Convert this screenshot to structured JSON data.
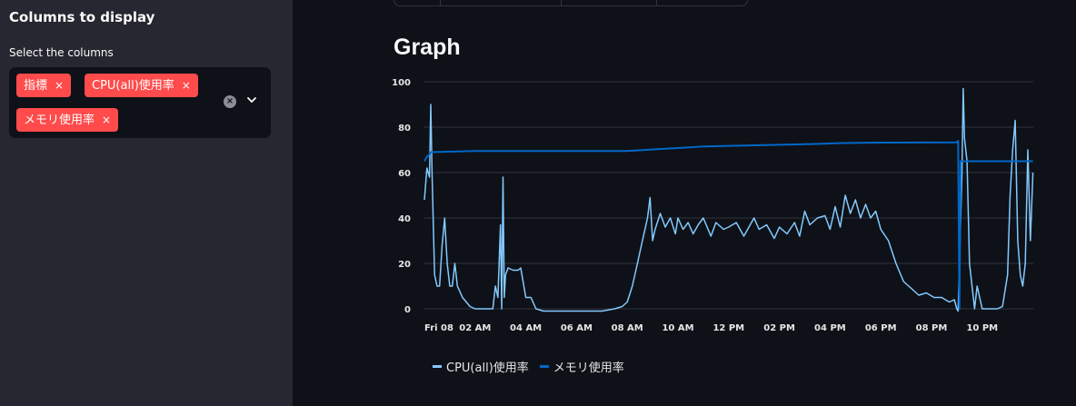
{
  "sidebar": {
    "title": "Columns to display",
    "select_label": "Select the columns",
    "tags": [
      "指標",
      "CPU(all)使用率",
      "メモリ使用率"
    ],
    "tag_remove": "×",
    "clear_icon": "×"
  },
  "main": {
    "heading": "Graph"
  },
  "colors": {
    "cpu": "#83c9ff",
    "mem": "#0068c9",
    "tag": "#ff4b4b",
    "sidebar_bg": "#262730",
    "page_bg": "#0e1117"
  },
  "chart_data": {
    "type": "line",
    "x_tick_labels": [
      "Fri 08",
      "02 AM",
      "04 AM",
      "06 AM",
      "08 AM",
      "10 AM",
      "12 PM",
      "02 PM",
      "04 PM",
      "06 PM",
      "08 PM",
      "10 PM"
    ],
    "x_ticks_hours": [
      0,
      2,
      4,
      6,
      8,
      10,
      12,
      14,
      16,
      18,
      20,
      22
    ],
    "xlim_hours": [
      0,
      24
    ],
    "ylim": [
      0,
      100
    ],
    "y_ticks": [
      0,
      20,
      40,
      60,
      80,
      100
    ],
    "grid": true,
    "legend_position": "bottom",
    "series": [
      {
        "name": "CPU(all)使用率",
        "points": [
          [
            0.0,
            48
          ],
          [
            0.1,
            62
          ],
          [
            0.2,
            58
          ],
          [
            0.25,
            90
          ],
          [
            0.3,
            60
          ],
          [
            0.4,
            15
          ],
          [
            0.5,
            10
          ],
          [
            0.6,
            10
          ],
          [
            0.7,
            28
          ],
          [
            0.8,
            40
          ],
          [
            0.9,
            20
          ],
          [
            1.0,
            10
          ],
          [
            1.1,
            10
          ],
          [
            1.2,
            20
          ],
          [
            1.3,
            10
          ],
          [
            1.5,
            5
          ],
          [
            1.8,
            1
          ],
          [
            2.0,
            0
          ],
          [
            2.2,
            0
          ],
          [
            2.5,
            0
          ],
          [
            2.7,
            0
          ],
          [
            2.8,
            10
          ],
          [
            2.9,
            5
          ],
          [
            3.0,
            37
          ],
          [
            3.05,
            0
          ],
          [
            3.1,
            58
          ],
          [
            3.15,
            5
          ],
          [
            3.2,
            15
          ],
          [
            3.3,
            18
          ],
          [
            3.5,
            17
          ],
          [
            3.7,
            17
          ],
          [
            3.8,
            18
          ],
          [
            4.0,
            5
          ],
          [
            4.2,
            5
          ],
          [
            4.4,
            0
          ],
          [
            4.7,
            -1
          ],
          [
            5.0,
            -1
          ],
          [
            6.0,
            -1
          ],
          [
            7.0,
            -1
          ],
          [
            7.5,
            0
          ],
          [
            7.8,
            1
          ],
          [
            8.0,
            3
          ],
          [
            8.2,
            10
          ],
          [
            8.4,
            20
          ],
          [
            8.6,
            30
          ],
          [
            8.8,
            40
          ],
          [
            8.9,
            49
          ],
          [
            9.0,
            30
          ],
          [
            9.1,
            35
          ],
          [
            9.3,
            42
          ],
          [
            9.5,
            36
          ],
          [
            9.7,
            40
          ],
          [
            9.9,
            33
          ],
          [
            10.0,
            40
          ],
          [
            10.2,
            35
          ],
          [
            10.4,
            38
          ],
          [
            10.6,
            33
          ],
          [
            10.8,
            37
          ],
          [
            11.0,
            40
          ],
          [
            11.3,
            32
          ],
          [
            11.5,
            38
          ],
          [
            11.8,
            35
          ],
          [
            12.0,
            36
          ],
          [
            12.3,
            38
          ],
          [
            12.6,
            32
          ],
          [
            12.8,
            36
          ],
          [
            13.0,
            40
          ],
          [
            13.2,
            35
          ],
          [
            13.5,
            37
          ],
          [
            13.8,
            31
          ],
          [
            14.0,
            36
          ],
          [
            14.3,
            33
          ],
          [
            14.6,
            38
          ],
          [
            14.8,
            32
          ],
          [
            15.0,
            43
          ],
          [
            15.2,
            37
          ],
          [
            15.5,
            40
          ],
          [
            15.8,
            41
          ],
          [
            16.0,
            35
          ],
          [
            16.2,
            45
          ],
          [
            16.4,
            36
          ],
          [
            16.6,
            50
          ],
          [
            16.8,
            42
          ],
          [
            17.0,
            48
          ],
          [
            17.2,
            40
          ],
          [
            17.4,
            46
          ],
          [
            17.6,
            40
          ],
          [
            17.8,
            43
          ],
          [
            18.0,
            35
          ],
          [
            18.3,
            30
          ],
          [
            18.6,
            20
          ],
          [
            18.9,
            12
          ],
          [
            19.2,
            9
          ],
          [
            19.5,
            6
          ],
          [
            19.8,
            7
          ],
          [
            20.1,
            5
          ],
          [
            20.4,
            5
          ],
          [
            20.7,
            3
          ],
          [
            20.9,
            4
          ],
          [
            21.0,
            0
          ],
          [
            21.05,
            -1
          ],
          [
            21.2,
            60
          ],
          [
            21.25,
            97
          ],
          [
            21.3,
            75
          ],
          [
            21.4,
            65
          ],
          [
            21.5,
            20
          ],
          [
            21.6,
            10
          ],
          [
            21.7,
            0
          ],
          [
            21.8,
            10
          ],
          [
            21.9,
            5
          ],
          [
            22.0,
            0
          ],
          [
            22.2,
            0
          ],
          [
            22.4,
            0
          ],
          [
            22.6,
            0
          ],
          [
            22.8,
            1
          ],
          [
            23.0,
            15
          ],
          [
            23.1,
            50
          ],
          [
            23.2,
            70
          ],
          [
            23.3,
            83
          ],
          [
            23.4,
            30
          ],
          [
            23.5,
            15
          ],
          [
            23.6,
            10
          ],
          [
            23.7,
            20
          ],
          [
            23.8,
            70
          ],
          [
            23.9,
            30
          ],
          [
            24.0,
            60
          ]
        ]
      },
      {
        "name": "メモリ使用率",
        "points": [
          [
            0.0,
            65
          ],
          [
            0.1,
            67
          ],
          [
            0.2,
            68
          ],
          [
            0.25,
            69
          ],
          [
            2.0,
            69.5
          ],
          [
            6.0,
            69.5
          ],
          [
            8.0,
            69.5
          ],
          [
            9.5,
            70.5
          ],
          [
            11.0,
            71.5
          ],
          [
            13.0,
            72
          ],
          [
            15.0,
            72.5
          ],
          [
            16.5,
            73
          ],
          [
            18.0,
            73.2
          ],
          [
            21.0,
            73.3
          ],
          [
            21.05,
            74
          ],
          [
            21.1,
            0
          ],
          [
            21.15,
            65
          ],
          [
            24.0,
            65
          ]
        ]
      }
    ]
  }
}
